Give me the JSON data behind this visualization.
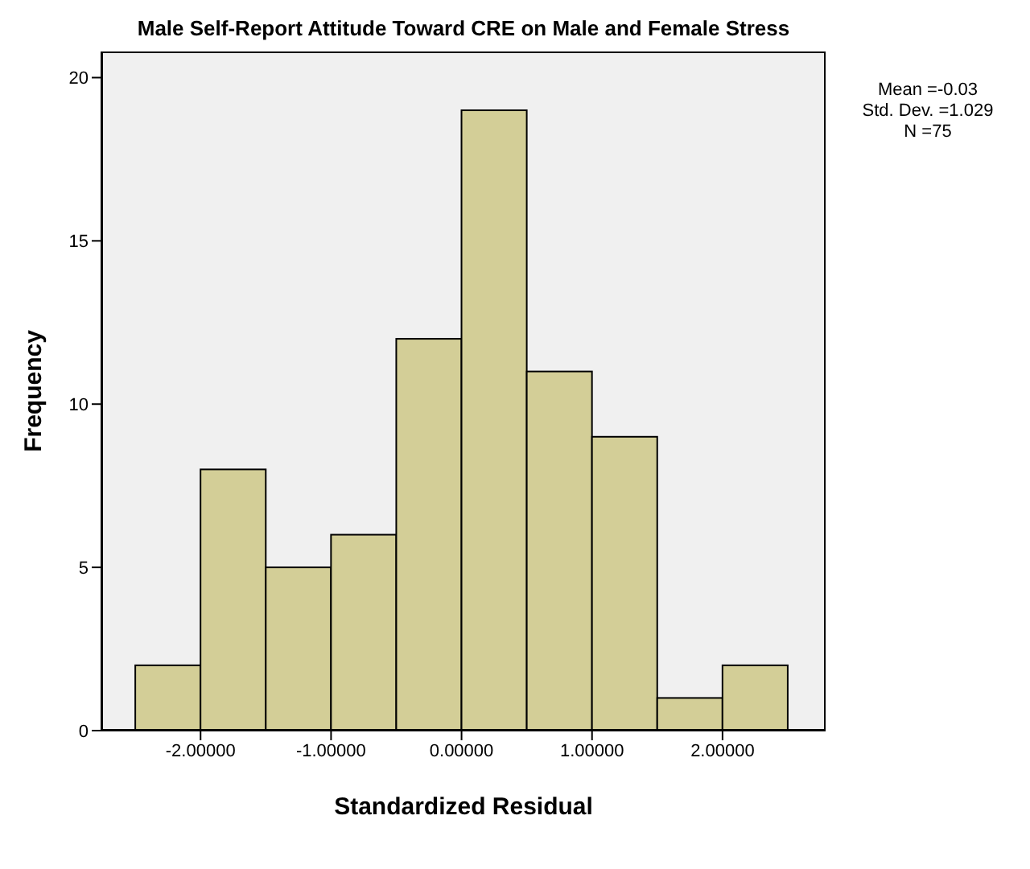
{
  "chart_data": {
    "type": "histogram",
    "title": "Male Self-Report Attitude Toward CRE on Male and Female Stress",
    "xlabel": "Standardized Residual",
    "ylabel": "Frequency",
    "bins": [
      -2.5,
      -2,
      -1.5,
      -1,
      -0.5,
      0,
      0.5,
      1,
      1.5,
      2,
      2.5
    ],
    "values": [
      2,
      8,
      5,
      6,
      12,
      19,
      11,
      9,
      1,
      2
    ],
    "color": "#d3ce97",
    "xlim": [
      -2.76,
      2.79
    ],
    "xticks": [
      {
        "value": -2,
        "label": "-2.00000"
      },
      {
        "value": -1,
        "label": "-1.00000"
      },
      {
        "value": 0,
        "label": "0.00000"
      },
      {
        "value": 1,
        "label": "1.00000"
      },
      {
        "value": 2,
        "label": "2.00000"
      }
    ],
    "ylim": [
      0,
      20.8
    ],
    "yticks": [
      0,
      5,
      10,
      15,
      20
    ],
    "annotations": [
      "Mean =-0.03",
      "Std. Dev. =1.029",
      "N =75"
    ],
    "grid": false,
    "legend": false
  }
}
